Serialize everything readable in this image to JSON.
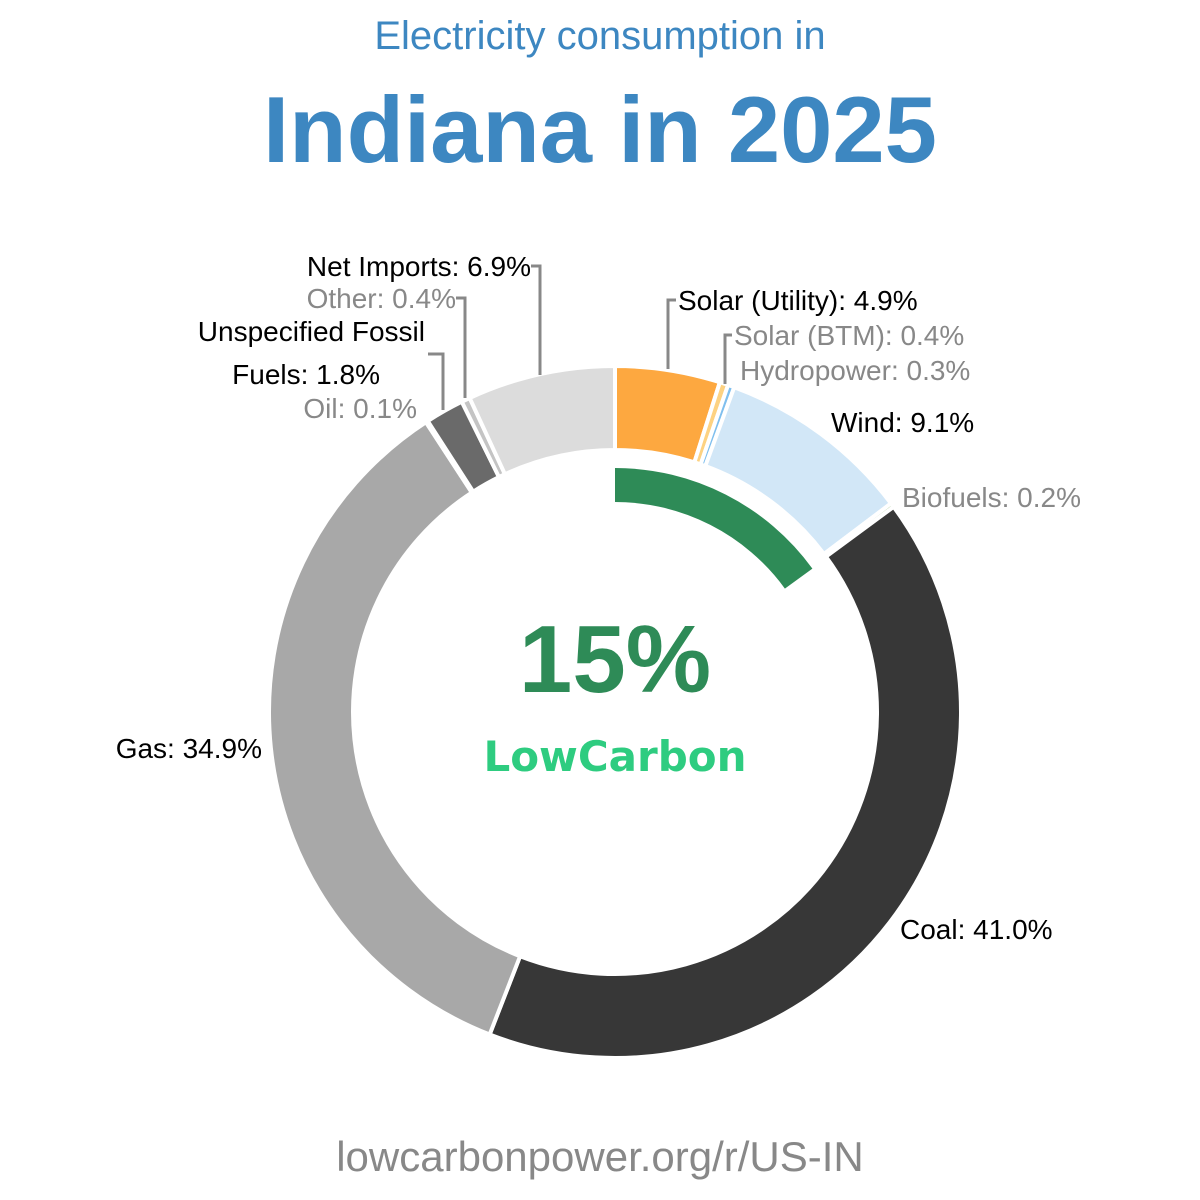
{
  "header": {
    "subtitle": "Electricity consumption in",
    "title": "Indiana in 2025"
  },
  "center": {
    "percentage": "15%",
    "label": "LowCarbon"
  },
  "footer": {
    "url": "lowcarbonpower.org/r/US-IN"
  },
  "chart_data": {
    "type": "pie",
    "subtype": "donut",
    "title": "Electricity consumption in Indiana in 2025",
    "center_text": "15% LowCarbon",
    "categories": [
      "Solar (Utility)",
      "Solar (BTM)",
      "Hydropower",
      "Wind",
      "Biofuels",
      "Coal",
      "Gas",
      "Oil",
      "Unspecified Fossil Fuels",
      "Other",
      "Net Imports"
    ],
    "values": [
      4.9,
      0.4,
      0.3,
      9.1,
      0.2,
      41.0,
      34.9,
      0.1,
      1.8,
      0.4,
      6.9
    ],
    "colors": [
      "#fda840",
      "#fdd282",
      "#7fbfee",
      "#d2e7f7",
      "#9dc183",
      "#373737",
      "#a8a8a8",
      "#454545",
      "#6a6a6a",
      "#c4c4c4",
      "#dcdcdc"
    ],
    "labels": [
      {
        "text": "Solar (Utility): 4.9%",
        "color": "#000000"
      },
      {
        "text": "Solar (BTM): 0.4%",
        "color": "#888888"
      },
      {
        "text": "Hydropower: 0.3%",
        "color": "#888888"
      },
      {
        "text": "Wind: 9.1%",
        "color": "#000000"
      },
      {
        "text": "Biofuels: 0.2%",
        "color": "#888888"
      },
      {
        "text": "Coal: 41.0%",
        "color": "#000000"
      },
      {
        "text": "Gas: 34.9%",
        "color": "#000000"
      },
      {
        "text": "Oil: 0.1%",
        "color": "#888888"
      },
      {
        "text": "Unspecified Fossil",
        "text2": "Fuels: 1.8%",
        "color": "#000000"
      },
      {
        "text": "Other: 0.4%",
        "color": "#888888"
      },
      {
        "text": "Net Imports: 6.9%",
        "color": "#000000"
      }
    ],
    "low_carbon_share": 15,
    "low_carbon_color": "#2e8b57",
    "legend": "none (inline labels)"
  }
}
